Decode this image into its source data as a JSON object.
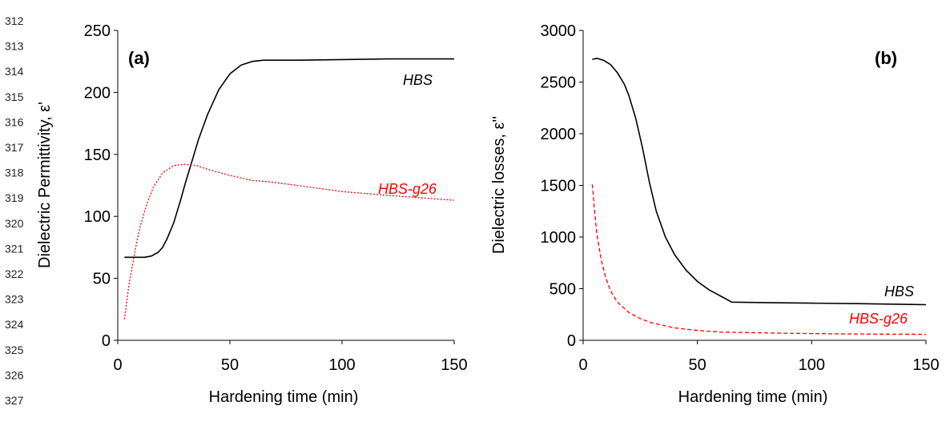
{
  "line_numbers": [
    "312",
    "313",
    "314",
    "315",
    "316",
    "317",
    "318",
    "319",
    "320",
    "321",
    "322",
    "323",
    "324",
    "325",
    "326",
    "327"
  ],
  "colors": {
    "hbs": "#000000",
    "hbs_g26": "#ff0000"
  },
  "chart_data": [
    {
      "type": "line",
      "panel_label": "(a)",
      "xlabel": "Hardening time (min)",
      "ylabel": "Dielectric Permittivity, ε'",
      "xlim": [
        0,
        150
      ],
      "ylim": [
        0,
        250
      ],
      "xticks": [
        0,
        50,
        100,
        150
      ],
      "yticks": [
        0,
        50,
        100,
        150,
        200,
        250
      ],
      "grid": false,
      "series": [
        {
          "name": "HBS",
          "color": "#000000",
          "dash": "solid",
          "x": [
            3,
            5,
            8,
            12,
            15,
            18,
            20,
            22,
            25,
            28,
            30,
            33,
            36,
            40,
            45,
            50,
            55,
            60,
            65,
            70,
            80,
            100,
            120,
            150
          ],
          "y": [
            67,
            67,
            67,
            67,
            68,
            71,
            75,
            82,
            95,
            113,
            126,
            144,
            162,
            182,
            202,
            215,
            222,
            225,
            226,
            226,
            226,
            226.5,
            227,
            227
          ]
        },
        {
          "name": "HBS-g26",
          "color": "#ff0000",
          "dash": "dotted",
          "x": [
            3,
            5,
            8,
            10,
            13,
            16,
            20,
            25,
            30,
            35,
            40,
            50,
            60,
            67,
            80,
            100,
            120,
            150
          ],
          "y": [
            17,
            45,
            75,
            92,
            110,
            124,
            135,
            141,
            142,
            141,
            138,
            133,
            129,
            128,
            125,
            120,
            117,
            113
          ]
        }
      ]
    },
    {
      "type": "line",
      "panel_label": "(b)",
      "xlabel": "Hardening time (min)",
      "ylabel": "Dielectric losses, ε''",
      "xlim": [
        0,
        150
      ],
      "ylim": [
        0,
        3000
      ],
      "xticks": [
        0,
        50,
        100,
        150
      ],
      "yticks": [
        0,
        500,
        1000,
        1500,
        2000,
        2500,
        3000
      ],
      "grid": false,
      "series": [
        {
          "name": "HBS",
          "color": "#000000",
          "dash": "solid",
          "x": [
            4,
            6,
            9,
            12,
            15,
            18,
            20,
            23,
            26,
            29,
            32,
            36,
            40,
            45,
            50,
            55,
            60,
            65,
            80,
            100,
            120,
            150
          ],
          "y": [
            2720,
            2730,
            2710,
            2670,
            2590,
            2480,
            2370,
            2150,
            1860,
            1530,
            1250,
            1000,
            830,
            680,
            570,
            490,
            430,
            370,
            365,
            360,
            355,
            345
          ]
        },
        {
          "name": "HBS-g26",
          "color": "#ff0000",
          "dash": "dashed",
          "x": [
            4,
            5,
            6,
            8,
            10,
            12,
            15,
            20,
            25,
            30,
            40,
            50,
            60,
            70,
            90,
            110,
            130,
            150
          ],
          "y": [
            1510,
            1250,
            1030,
            770,
            600,
            480,
            370,
            270,
            210,
            170,
            120,
            95,
            80,
            75,
            68,
            63,
            60,
            58
          ]
        }
      ]
    }
  ]
}
